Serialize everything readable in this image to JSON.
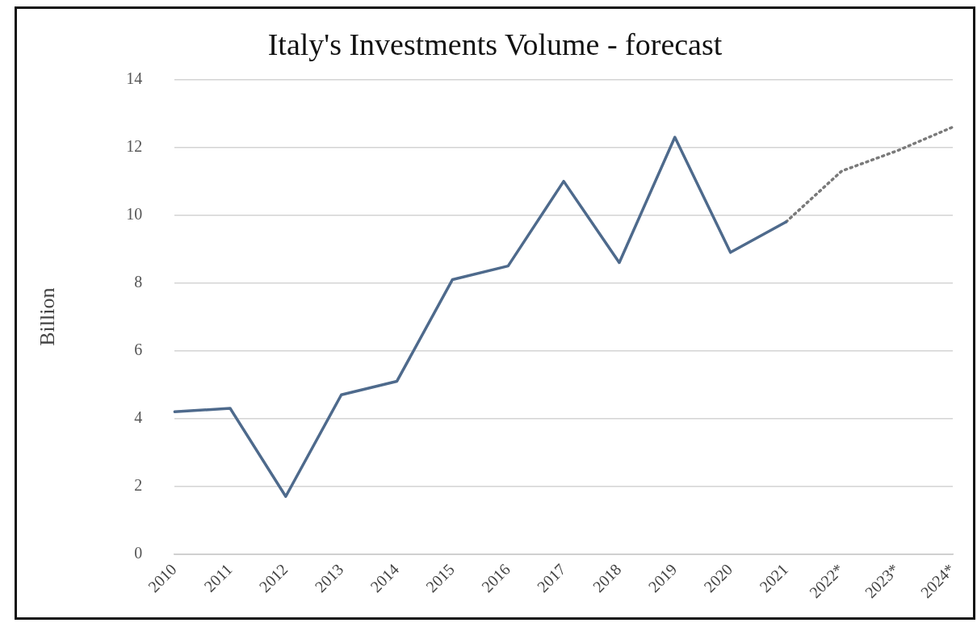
{
  "chart_data": {
    "type": "line",
    "title": "Italy's Investments Volume - forecast",
    "ylabel": "Billion",
    "categories": [
      "2010",
      "2011",
      "2012",
      "2013",
      "2014",
      "2015",
      "2016",
      "2017",
      "2018",
      "2019",
      "2020",
      "2021",
      "2022*",
      "2023*",
      "2024*"
    ],
    "series": [
      {
        "color": "#4e6a8c",
        "line_style": "solid",
        "values": [
          4.2,
          4.3,
          1.7,
          4.7,
          5.1,
          8.1,
          8.5,
          11.0,
          8.6,
          12.3,
          8.9,
          9.8,
          null,
          null,
          null
        ]
      },
      {
        "color": "#7a7a7a",
        "line_style": "dotted",
        "values": [
          null,
          null,
          null,
          null,
          null,
          null,
          null,
          null,
          null,
          null,
          null,
          9.8,
          11.3,
          11.9,
          12.6
        ]
      }
    ],
    "ylim": [
      0,
      14
    ],
    "yticks": [
      0,
      2,
      4,
      6,
      8,
      10,
      12,
      14
    ],
    "grid": "y",
    "legend": false,
    "marker": "none"
  }
}
